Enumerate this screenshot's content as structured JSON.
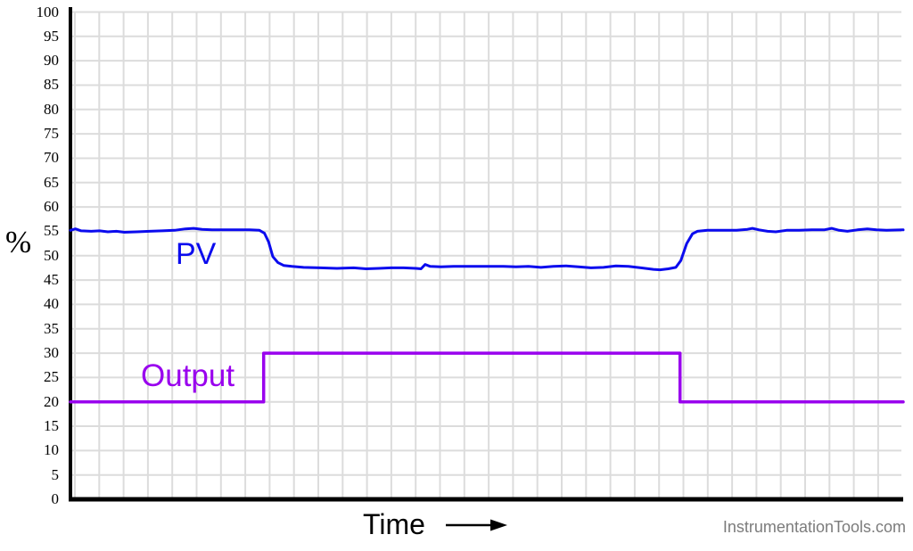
{
  "labels": {
    "pv": "PV",
    "output": "Output",
    "time_axis": "Time",
    "unit": "%",
    "watermark": "InstrumentationTools.com"
  },
  "colors": {
    "pv": "#0b0bee",
    "output": "#9900ee",
    "grid": "#dcdcdc",
    "axis": "#000000",
    "watermark": "#7c7c7c"
  },
  "chart_data": {
    "type": "line",
    "title": "",
    "xlabel": "Time",
    "ylabel": "%",
    "xlim": [
      0,
      100
    ],
    "ylim": [
      0,
      100
    ],
    "grid": true,
    "yticks": [
      0,
      5,
      10,
      15,
      20,
      25,
      30,
      35,
      40,
      45,
      50,
      55,
      60,
      65,
      70,
      75,
      80,
      85,
      90,
      95,
      100
    ],
    "legend_position": "inline-labels",
    "series": [
      {
        "name": "PV",
        "color": "#0b0bee",
        "width": 3,
        "points": [
          [
            0,
            55.2
          ],
          [
            0.6,
            55.5
          ],
          [
            1.3,
            55.1
          ],
          [
            2.5,
            55.0
          ],
          [
            3.5,
            55.1
          ],
          [
            4.5,
            54.9
          ],
          [
            5.5,
            55.0
          ],
          [
            6.5,
            54.8
          ],
          [
            8,
            54.9
          ],
          [
            9.5,
            55.0
          ],
          [
            11,
            55.1
          ],
          [
            12.5,
            55.2
          ],
          [
            13.8,
            55.5
          ],
          [
            14.8,
            55.6
          ],
          [
            15.8,
            55.4
          ],
          [
            17,
            55.3
          ],
          [
            18.5,
            55.3
          ],
          [
            20,
            55.3
          ],
          [
            21.5,
            55.3
          ],
          [
            22.7,
            55.2
          ],
          [
            23.3,
            54.6
          ],
          [
            23.8,
            52.8
          ],
          [
            24.3,
            49.8
          ],
          [
            24.9,
            48.6
          ],
          [
            25.6,
            48.0
          ],
          [
            26.6,
            47.8
          ],
          [
            28,
            47.6
          ],
          [
            30,
            47.5
          ],
          [
            32,
            47.4
          ],
          [
            34,
            47.5
          ],
          [
            35.5,
            47.3
          ],
          [
            37,
            47.4
          ],
          [
            38.5,
            47.5
          ],
          [
            40,
            47.5
          ],
          [
            41.5,
            47.4
          ],
          [
            42.1,
            47.3
          ],
          [
            42.6,
            48.2
          ],
          [
            43.2,
            47.8
          ],
          [
            44.5,
            47.7
          ],
          [
            46,
            47.8
          ],
          [
            48,
            47.8
          ],
          [
            50,
            47.8
          ],
          [
            52,
            47.8
          ],
          [
            53.5,
            47.7
          ],
          [
            55,
            47.8
          ],
          [
            56.5,
            47.6
          ],
          [
            58,
            47.8
          ],
          [
            59.5,
            47.9
          ],
          [
            61,
            47.7
          ],
          [
            62.5,
            47.5
          ],
          [
            64,
            47.6
          ],
          [
            65.5,
            47.9
          ],
          [
            67,
            47.8
          ],
          [
            68.5,
            47.5
          ],
          [
            70,
            47.2
          ],
          [
            70.8,
            47.1
          ],
          [
            71.8,
            47.3
          ],
          [
            72.7,
            47.6
          ],
          [
            73.3,
            49.0
          ],
          [
            74.0,
            52.5
          ],
          [
            74.7,
            54.5
          ],
          [
            75.3,
            55.0
          ],
          [
            76.5,
            55.2
          ],
          [
            78,
            55.2
          ],
          [
            80,
            55.2
          ],
          [
            81.3,
            55.4
          ],
          [
            81.9,
            55.6
          ],
          [
            82.7,
            55.3
          ],
          [
            83.7,
            55.0
          ],
          [
            84.7,
            54.9
          ],
          [
            86,
            55.2
          ],
          [
            87.5,
            55.2
          ],
          [
            89,
            55.3
          ],
          [
            90.5,
            55.3
          ],
          [
            91.4,
            55.6
          ],
          [
            92.3,
            55.2
          ],
          [
            93.3,
            55.0
          ],
          [
            94.5,
            55.3
          ],
          [
            95.7,
            55.5
          ],
          [
            96.8,
            55.3
          ],
          [
            98,
            55.2
          ],
          [
            100,
            55.3
          ]
        ]
      },
      {
        "name": "Output",
        "color": "#9900ee",
        "width": 3.5,
        "points": [
          [
            0,
            20
          ],
          [
            23.2,
            20
          ],
          [
            23.2,
            30
          ],
          [
            73.2,
            30
          ],
          [
            73.2,
            20
          ],
          [
            100,
            20
          ]
        ]
      }
    ]
  }
}
